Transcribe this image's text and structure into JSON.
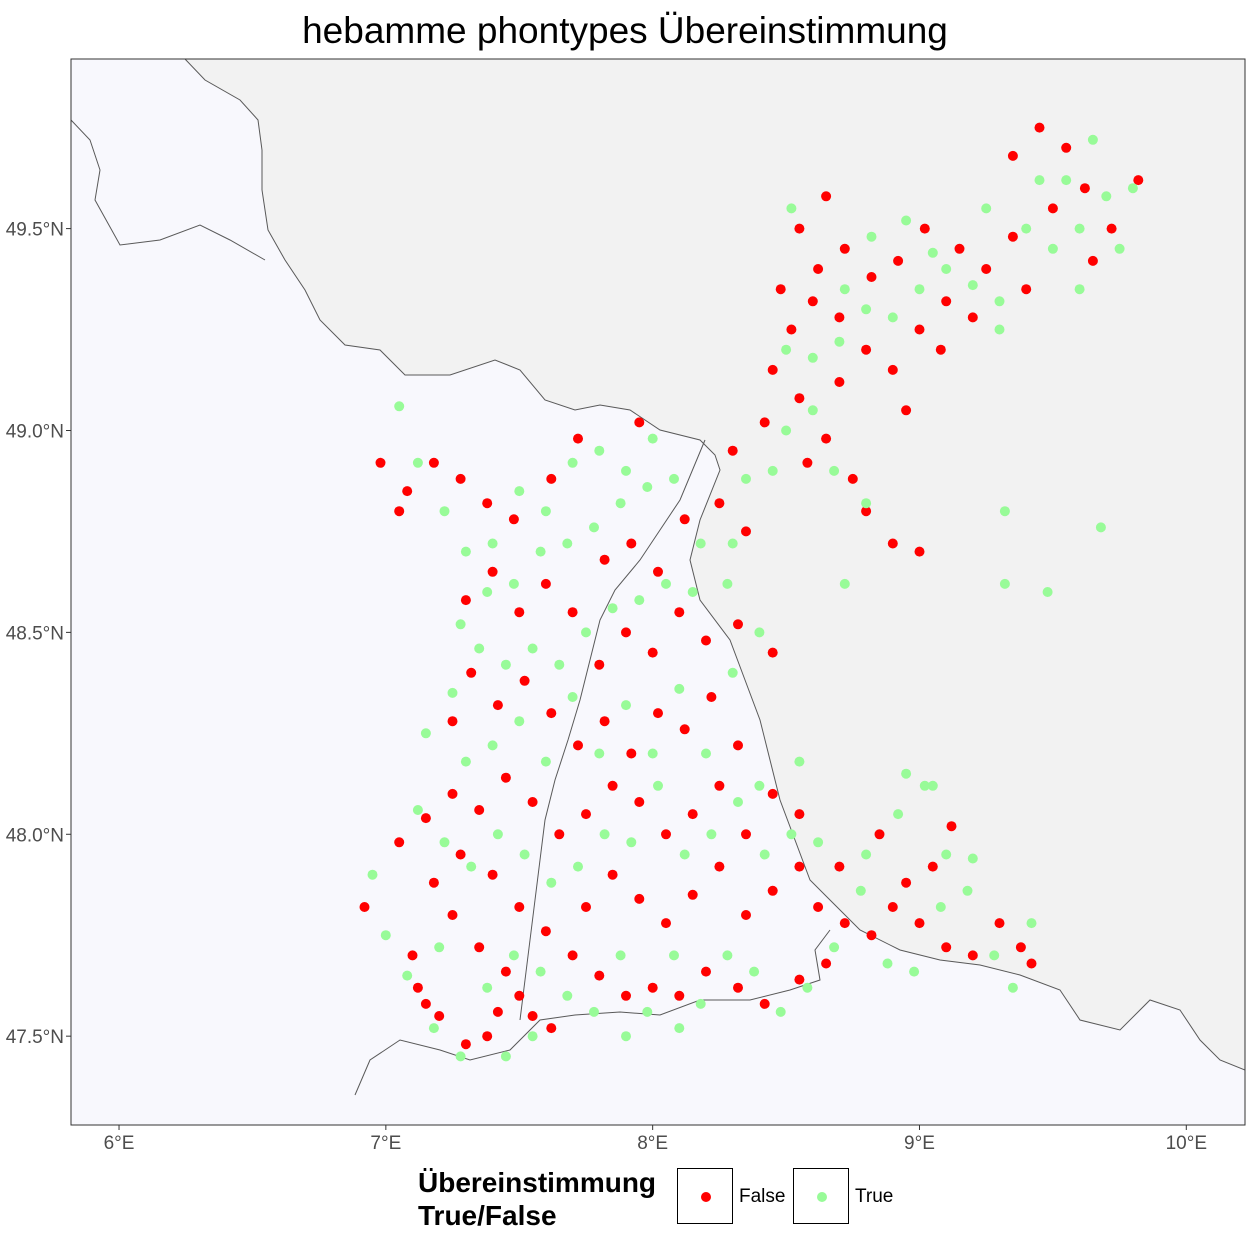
{
  "title": "hebamme phontypes Übereinstimmung",
  "x_axis": {
    "ticks": [
      {
        "value": 6,
        "label": "6°E"
      },
      {
        "value": 7,
        "label": "7°E"
      },
      {
        "value": 8,
        "label": "8°E"
      },
      {
        "value": 9,
        "label": "9°E"
      },
      {
        "value": 10,
        "label": "10°E"
      }
    ],
    "range": [
      5.82,
      10.22
    ]
  },
  "y_axis": {
    "ticks": [
      {
        "value": 47.5,
        "label": "47.5°N"
      },
      {
        "value": 48.0,
        "label": "48.0°N"
      },
      {
        "value": 48.5,
        "label": "48.5°N"
      },
      {
        "value": 49.0,
        "label": "49.0°N"
      },
      {
        "value": 49.5,
        "label": "49.5°N"
      }
    ],
    "range": [
      47.28,
      49.92
    ]
  },
  "legend": {
    "title_line1": "Übereinstimmung",
    "title_line2": "True/False",
    "items": [
      {
        "label": "False",
        "color": "#ff0000"
      },
      {
        "label": "True",
        "color": "#98fb98"
      }
    ]
  },
  "colors": {
    "false": "#ff0000",
    "true": "#98fb98",
    "focus_region": "#f8f8fd",
    "outside_region": "#f2f2f2",
    "border_line": "#595959"
  },
  "chart_data": {
    "type": "scatter",
    "title": "hebamme phontypes Übereinstimmung",
    "xlabel": "",
    "ylabel": "",
    "xlim": [
      5.82,
      10.22
    ],
    "ylim": [
      47.28,
      49.92
    ],
    "grid": false,
    "legend_position": "bottom",
    "series": [
      {
        "name": "False",
        "color": "#ff0000",
        "points": [
          [
            6.92,
            47.82
          ],
          [
            7.05,
            47.98
          ],
          [
            7.1,
            47.7
          ],
          [
            7.12,
            47.62
          ],
          [
            7.2,
            47.55
          ],
          [
            7.3,
            47.48
          ],
          [
            7.42,
            47.56
          ],
          [
            7.5,
            47.6
          ],
          [
            7.55,
            47.55
          ],
          [
            7.45,
            47.66
          ],
          [
            7.35,
            47.72
          ],
          [
            7.25,
            47.8
          ],
          [
            7.18,
            47.88
          ],
          [
            7.28,
            47.95
          ],
          [
            7.4,
            47.9
          ],
          [
            7.5,
            47.82
          ],
          [
            7.6,
            47.76
          ],
          [
            7.7,
            47.7
          ],
          [
            7.8,
            47.65
          ],
          [
            7.9,
            47.6
          ],
          [
            8.0,
            47.62
          ],
          [
            8.1,
            47.6
          ],
          [
            8.2,
            47.66
          ],
          [
            8.32,
            47.62
          ],
          [
            8.42,
            47.58
          ],
          [
            8.55,
            47.64
          ],
          [
            8.65,
            47.68
          ],
          [
            7.75,
            47.82
          ],
          [
            7.85,
            47.9
          ],
          [
            7.95,
            47.84
          ],
          [
            8.05,
            47.78
          ],
          [
            8.15,
            47.85
          ],
          [
            8.25,
            47.92
          ],
          [
            8.35,
            47.8
          ],
          [
            8.45,
            47.86
          ],
          [
            8.55,
            47.92
          ],
          [
            8.62,
            47.82
          ],
          [
            8.72,
            47.78
          ],
          [
            8.82,
            47.75
          ],
          [
            8.9,
            47.82
          ],
          [
            9.0,
            47.78
          ],
          [
            9.1,
            47.72
          ],
          [
            9.2,
            47.7
          ],
          [
            9.3,
            47.78
          ],
          [
            9.38,
            47.72
          ],
          [
            9.42,
            47.68
          ],
          [
            9.05,
            47.92
          ],
          [
            8.95,
            47.88
          ],
          [
            8.85,
            48.0
          ],
          [
            9.12,
            48.02
          ],
          [
            8.45,
            48.1
          ],
          [
            8.55,
            48.05
          ],
          [
            8.35,
            48.0
          ],
          [
            8.25,
            48.12
          ],
          [
            8.15,
            48.05
          ],
          [
            8.05,
            48.0
          ],
          [
            7.95,
            48.08
          ],
          [
            7.85,
            48.12
          ],
          [
            7.75,
            48.05
          ],
          [
            7.65,
            48.0
          ],
          [
            7.55,
            48.08
          ],
          [
            7.45,
            48.14
          ],
          [
            7.35,
            48.06
          ],
          [
            7.25,
            48.1
          ],
          [
            7.15,
            48.04
          ],
          [
            7.72,
            48.22
          ],
          [
            7.82,
            48.28
          ],
          [
            7.92,
            48.2
          ],
          [
            8.02,
            48.3
          ],
          [
            8.12,
            48.26
          ],
          [
            8.22,
            48.34
          ],
          [
            8.32,
            48.22
          ],
          [
            7.62,
            48.3
          ],
          [
            7.52,
            48.38
          ],
          [
            7.42,
            48.32
          ],
          [
            7.32,
            48.4
          ],
          [
            7.25,
            48.28
          ],
          [
            7.8,
            48.42
          ],
          [
            7.9,
            48.5
          ],
          [
            8.0,
            48.45
          ],
          [
            8.1,
            48.55
          ],
          [
            8.2,
            48.48
          ],
          [
            8.32,
            48.52
          ],
          [
            8.45,
            48.45
          ],
          [
            7.7,
            48.55
          ],
          [
            7.6,
            48.62
          ],
          [
            7.5,
            48.55
          ],
          [
            7.4,
            48.65
          ],
          [
            7.3,
            48.58
          ],
          [
            7.82,
            48.68
          ],
          [
            7.92,
            48.72
          ],
          [
            8.02,
            48.65
          ],
          [
            8.12,
            48.78
          ],
          [
            8.25,
            48.82
          ],
          [
            8.35,
            48.75
          ],
          [
            7.48,
            48.78
          ],
          [
            7.38,
            48.82
          ],
          [
            7.28,
            48.88
          ],
          [
            7.18,
            48.92
          ],
          [
            7.08,
            48.85
          ],
          [
            6.98,
            48.92
          ],
          [
            7.05,
            48.8
          ],
          [
            7.62,
            48.88
          ],
          [
            7.72,
            48.98
          ],
          [
            7.95,
            49.02
          ],
          [
            8.3,
            48.95
          ],
          [
            8.42,
            49.02
          ],
          [
            8.55,
            49.08
          ],
          [
            8.65,
            48.98
          ],
          [
            8.75,
            48.88
          ],
          [
            8.8,
            48.8
          ],
          [
            8.45,
            49.15
          ],
          [
            8.52,
            49.25
          ],
          [
            8.6,
            49.32
          ],
          [
            8.7,
            49.28
          ],
          [
            8.8,
            49.2
          ],
          [
            8.9,
            49.15
          ],
          [
            9.0,
            49.25
          ],
          [
            9.1,
            49.32
          ],
          [
            8.62,
            49.4
          ],
          [
            8.72,
            49.45
          ],
          [
            8.82,
            49.38
          ],
          [
            8.92,
            49.42
          ],
          [
            9.02,
            49.5
          ],
          [
            9.15,
            49.45
          ],
          [
            9.25,
            49.4
          ],
          [
            9.35,
            49.48
          ],
          [
            8.55,
            49.5
          ],
          [
            8.65,
            49.58
          ],
          [
            8.48,
            49.35
          ],
          [
            8.9,
            48.72
          ],
          [
            9.0,
            48.7
          ],
          [
            9.45,
            49.75
          ],
          [
            9.55,
            49.7
          ],
          [
            9.62,
            49.6
          ],
          [
            9.72,
            49.5
          ],
          [
            9.82,
            49.62
          ],
          [
            9.35,
            49.68
          ],
          [
            9.5,
            49.55
          ],
          [
            9.65,
            49.42
          ],
          [
            9.4,
            49.35
          ],
          [
            9.2,
            49.28
          ],
          [
            9.08,
            49.2
          ],
          [
            8.95,
            49.05
          ],
          [
            8.7,
            49.12
          ],
          [
            8.58,
            48.92
          ],
          [
            7.15,
            47.58
          ],
          [
            7.38,
            47.5
          ],
          [
            7.62,
            47.52
          ],
          [
            8.7,
            47.92
          ]
        ]
      },
      {
        "name": "True",
        "color": "#98fb98",
        "points": [
          [
            6.95,
            47.9
          ],
          [
            7.0,
            47.75
          ],
          [
            7.08,
            47.65
          ],
          [
            7.18,
            47.52
          ],
          [
            7.28,
            47.45
          ],
          [
            7.38,
            47.62
          ],
          [
            7.48,
            47.7
          ],
          [
            7.58,
            47.66
          ],
          [
            7.68,
            47.6
          ],
          [
            7.78,
            47.56
          ],
          [
            7.88,
            47.7
          ],
          [
            7.98,
            47.56
          ],
          [
            8.08,
            47.7
          ],
          [
            8.18,
            47.58
          ],
          [
            8.28,
            47.7
          ],
          [
            8.38,
            47.66
          ],
          [
            8.48,
            47.56
          ],
          [
            8.58,
            47.62
          ],
          [
            8.68,
            47.72
          ],
          [
            8.78,
            47.86
          ],
          [
            8.88,
            47.68
          ],
          [
            8.98,
            47.66
          ],
          [
            9.08,
            47.82
          ],
          [
            9.18,
            47.86
          ],
          [
            9.28,
            47.7
          ],
          [
            9.35,
            47.62
          ],
          [
            9.42,
            47.78
          ],
          [
            9.2,
            47.94
          ],
          [
            9.02,
            48.12
          ],
          [
            8.92,
            48.05
          ],
          [
            8.8,
            47.95
          ],
          [
            8.62,
            47.98
          ],
          [
            8.52,
            48.0
          ],
          [
            8.42,
            47.95
          ],
          [
            8.32,
            48.08
          ],
          [
            8.22,
            48.0
          ],
          [
            8.12,
            47.95
          ],
          [
            8.02,
            48.12
          ],
          [
            7.92,
            47.98
          ],
          [
            7.82,
            48.0
          ],
          [
            7.72,
            47.92
          ],
          [
            7.62,
            47.88
          ],
          [
            7.52,
            47.95
          ],
          [
            7.42,
            48.0
          ],
          [
            7.32,
            47.92
          ],
          [
            7.22,
            47.98
          ],
          [
            7.12,
            48.06
          ],
          [
            7.3,
            48.18
          ],
          [
            7.4,
            48.22
          ],
          [
            7.5,
            48.28
          ],
          [
            7.6,
            48.18
          ],
          [
            7.7,
            48.34
          ],
          [
            7.8,
            48.2
          ],
          [
            7.9,
            48.32
          ],
          [
            8.0,
            48.2
          ],
          [
            8.1,
            48.36
          ],
          [
            8.2,
            48.2
          ],
          [
            8.3,
            48.4
          ],
          [
            7.25,
            48.35
          ],
          [
            7.35,
            48.46
          ],
          [
            7.45,
            48.42
          ],
          [
            7.55,
            48.46
          ],
          [
            7.65,
            48.42
          ],
          [
            7.75,
            48.5
          ],
          [
            7.85,
            48.56
          ],
          [
            7.95,
            48.58
          ],
          [
            8.05,
            48.62
          ],
          [
            8.15,
            48.6
          ],
          [
            8.28,
            48.62
          ],
          [
            8.4,
            48.5
          ],
          [
            7.28,
            48.52
          ],
          [
            7.38,
            48.6
          ],
          [
            7.48,
            48.62
          ],
          [
            7.58,
            48.7
          ],
          [
            7.68,
            48.72
          ],
          [
            7.78,
            48.76
          ],
          [
            7.88,
            48.82
          ],
          [
            7.98,
            48.86
          ],
          [
            8.08,
            48.88
          ],
          [
            8.18,
            48.72
          ],
          [
            8.3,
            48.72
          ],
          [
            7.3,
            48.7
          ],
          [
            7.4,
            48.72
          ],
          [
            7.5,
            48.85
          ],
          [
            7.6,
            48.8
          ],
          [
            7.7,
            48.92
          ],
          [
            7.8,
            48.95
          ],
          [
            7.9,
            48.9
          ],
          [
            8.0,
            48.98
          ],
          [
            7.22,
            48.8
          ],
          [
            7.12,
            48.92
          ],
          [
            7.05,
            49.06
          ],
          [
            8.35,
            48.88
          ],
          [
            8.45,
            48.9
          ],
          [
            8.5,
            49.0
          ],
          [
            8.6,
            49.05
          ],
          [
            8.68,
            48.9
          ],
          [
            8.8,
            48.82
          ],
          [
            8.5,
            49.2
          ],
          [
            8.6,
            49.18
          ],
          [
            8.7,
            49.22
          ],
          [
            8.8,
            49.3
          ],
          [
            8.9,
            49.28
          ],
          [
            9.0,
            49.35
          ],
          [
            9.1,
            49.4
          ],
          [
            9.2,
            49.36
          ],
          [
            9.3,
            49.32
          ],
          [
            8.72,
            49.35
          ],
          [
            8.82,
            49.48
          ],
          [
            8.95,
            49.52
          ],
          [
            9.05,
            49.44
          ],
          [
            9.25,
            49.55
          ],
          [
            9.3,
            49.25
          ],
          [
            9.4,
            49.5
          ],
          [
            9.5,
            49.45
          ],
          [
            9.6,
            49.5
          ],
          [
            9.7,
            49.58
          ],
          [
            9.8,
            49.6
          ],
          [
            9.65,
            49.72
          ],
          [
            9.55,
            49.62
          ],
          [
            9.45,
            49.62
          ],
          [
            9.6,
            49.35
          ],
          [
            9.75,
            49.45
          ],
          [
            8.52,
            49.55
          ],
          [
            8.72,
            48.62
          ],
          [
            9.32,
            48.8
          ],
          [
            9.32,
            48.62
          ],
          [
            9.48,
            48.6
          ],
          [
            9.68,
            48.76
          ],
          [
            8.95,
            48.15
          ],
          [
            9.05,
            48.12
          ],
          [
            8.4,
            48.12
          ],
          [
            8.55,
            48.18
          ],
          [
            7.15,
            48.25
          ],
          [
            7.2,
            47.72
          ],
          [
            7.45,
            47.45
          ],
          [
            7.55,
            47.5
          ],
          [
            7.9,
            47.5
          ],
          [
            8.1,
            47.52
          ],
          [
            9.1,
            47.95
          ]
        ]
      }
    ]
  }
}
